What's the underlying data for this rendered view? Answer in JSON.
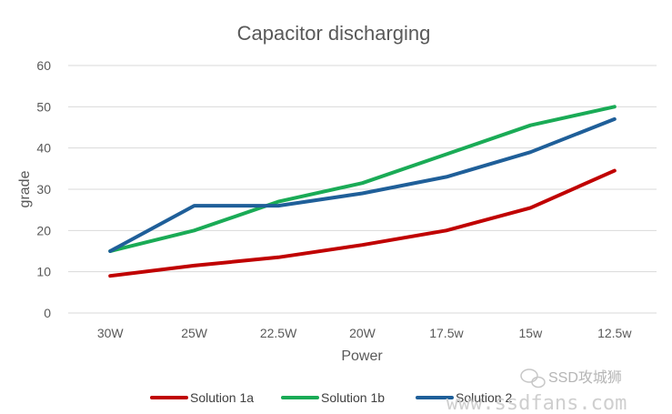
{
  "chart_data": {
    "type": "line",
    "title": "Capacitor discharging",
    "xlabel": "Power",
    "ylabel": "grade",
    "categories": [
      "30W",
      "25W",
      "22.5W",
      "20W",
      "17.5w",
      "15w",
      "12.5w"
    ],
    "ylim": [
      0,
      60
    ],
    "yticks": [
      0,
      10,
      20,
      30,
      40,
      50,
      60
    ],
    "grid": true,
    "legend_position": "bottom",
    "series": [
      {
        "name": "Solution 1a",
        "color": "#c00000",
        "values": [
          9,
          11.5,
          13.5,
          16.5,
          20,
          25.5,
          34.5
        ]
      },
      {
        "name": "Solution 1b",
        "color": "#1aab56",
        "values": [
          15,
          20,
          27,
          31.5,
          38.5,
          45.5,
          50
        ]
      },
      {
        "name": "Solution 2",
        "color": "#1f5f99",
        "values": [
          15,
          26,
          26,
          29,
          33,
          39,
          47
        ]
      }
    ]
  },
  "watermark": {
    "brand": "SSD攻城狮",
    "url": "www.ssdfans.com"
  }
}
